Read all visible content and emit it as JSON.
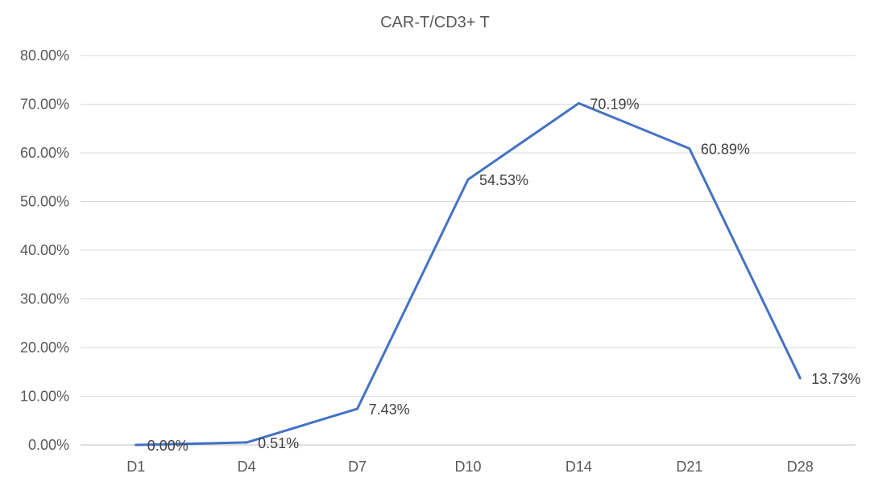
{
  "chart_data": {
    "type": "line",
    "title": "CAR-T/CD3+ T",
    "xlabel": "",
    "ylabel": "",
    "categories": [
      "D1",
      "D4",
      "D7",
      "D10",
      "D14",
      "D21",
      "D28"
    ],
    "series": [
      {
        "values": [
          0.0,
          0.51,
          7.43,
          54.53,
          70.19,
          60.89,
          13.73
        ],
        "data_labels": [
          "0.00%",
          "0.51%",
          "7.43%",
          "54.53%",
          "70.19%",
          "60.89%",
          "13.73%"
        ],
        "color": "#4472c4"
      }
    ],
    "ylim": [
      0,
      80
    ],
    "ytick_values": [
      0,
      10,
      20,
      30,
      40,
      50,
      60,
      70,
      80
    ],
    "ytick_labels": [
      "0.00%",
      "10.00%",
      "20.00%",
      "30.00%",
      "40.00%",
      "50.00%",
      "60.00%",
      "70.00%",
      "80.00%"
    ],
    "grid": true,
    "legend": "none"
  }
}
